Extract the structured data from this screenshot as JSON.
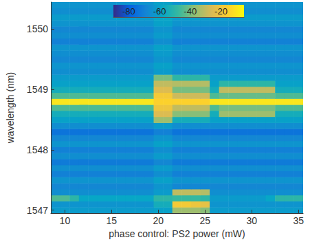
{
  "chart_data": {
    "type": "heatmap",
    "x_label": "phase control: PS2 power (mW)",
    "y_label": "wavelength (nm)",
    "xlim": [
      8.5,
      35.5
    ],
    "ylim": [
      1546.95,
      1550.45
    ],
    "xticks": [
      10,
      15,
      20,
      25,
      30,
      35
    ],
    "yticks": [
      1547,
      1548,
      1549,
      1550
    ],
    "colorbar": {
      "range": [
        -90,
        -5
      ],
      "ticks": [
        -80,
        -60,
        -40,
        -20
      ]
    },
    "x": [
      9,
      10,
      11,
      12,
      13,
      14,
      15,
      16,
      17,
      18,
      19,
      20,
      21,
      22,
      23,
      24,
      25,
      26,
      27,
      28,
      29,
      30,
      31,
      32,
      33,
      34,
      35
    ],
    "y": [
      1547.0,
      1547.1,
      1547.2,
      1547.3,
      1547.4,
      1547.5,
      1547.6,
      1547.7,
      1547.8,
      1547.9,
      1548.0,
      1548.1,
      1548.2,
      1548.3,
      1548.4,
      1548.5,
      1548.6,
      1548.7,
      1548.8,
      1548.9,
      1549.0,
      1549.1,
      1549.2,
      1549.3,
      1549.4,
      1549.5,
      1549.6,
      1549.7,
      1549.8,
      1549.9,
      1550.0,
      1550.1,
      1550.2,
      1550.3,
      1550.4
    ],
    "values": [
      [
        -62,
        -62,
        -62,
        -62,
        -62,
        -62,
        -62,
        -62,
        -62,
        -62,
        -62,
        -60,
        -60,
        -35,
        -35,
        -35,
        -38,
        -62,
        -62,
        -62,
        -62,
        -62,
        -62,
        -62,
        -62,
        -62,
        -62
      ],
      [
        -64,
        -64,
        -64,
        -64,
        -64,
        -64,
        -64,
        -64,
        -64,
        -64,
        -64,
        -55,
        -55,
        -18,
        -18,
        -20,
        -22,
        -64,
        -64,
        -64,
        -64,
        -64,
        -64,
        -64,
        -64,
        -64,
        -64
      ],
      [
        -45,
        -45,
        -50,
        -58,
        -58,
        -58,
        -58,
        -58,
        -58,
        -58,
        -58,
        -50,
        -50,
        -48,
        -48,
        -48,
        -50,
        -62,
        -62,
        -62,
        -62,
        -62,
        -62,
        -58,
        -50,
        -50,
        -50
      ],
      [
        -66,
        -66,
        -66,
        -66,
        -66,
        -66,
        -66,
        -66,
        -66,
        -66,
        -66,
        -62,
        -62,
        -30,
        -30,
        -30,
        -32,
        -66,
        -66,
        -66,
        -66,
        -66,
        -66,
        -66,
        -66,
        -66,
        -66
      ],
      [
        -68,
        -68,
        -68,
        -68,
        -68,
        -68,
        -68,
        -68,
        -68,
        -68,
        -68,
        -64,
        -64,
        -68,
        -68,
        -68,
        -68,
        -68,
        -68,
        -68,
        -68,
        -68,
        -68,
        -68,
        -68,
        -68,
        -68
      ],
      [
        -64,
        -64,
        -64,
        -64,
        -64,
        -64,
        -64,
        -64,
        -64,
        -64,
        -64,
        -60,
        -60,
        -64,
        -64,
        -64,
        -64,
        -64,
        -64,
        -64,
        -64,
        -64,
        -64,
        -64,
        -64,
        -64,
        -64
      ],
      [
        -70,
        -70,
        -70,
        -70,
        -70,
        -70,
        -70,
        -70,
        -70,
        -70,
        -70,
        -66,
        -66,
        -70,
        -70,
        -70,
        -70,
        -70,
        -70,
        -70,
        -70,
        -70,
        -70,
        -70,
        -70,
        -70,
        -70
      ],
      [
        -66,
        -66,
        -66,
        -66,
        -66,
        -66,
        -66,
        -66,
        -66,
        -66,
        -66,
        -62,
        -62,
        -66,
        -66,
        -66,
        -66,
        -66,
        -66,
        -66,
        -66,
        -66,
        -66,
        -66,
        -66,
        -66,
        -66
      ],
      [
        -72,
        -72,
        -72,
        -72,
        -72,
        -72,
        -72,
        -72,
        -72,
        -72,
        -72,
        -68,
        -68,
        -72,
        -72,
        -72,
        -72,
        -72,
        -72,
        -72,
        -72,
        -72,
        -72,
        -72,
        -72,
        -72,
        -72
      ],
      [
        -66,
        -66,
        -66,
        -66,
        -66,
        -66,
        -66,
        -66,
        -66,
        -66,
        -66,
        -62,
        -62,
        -66,
        -66,
        -66,
        -66,
        -66,
        -66,
        -66,
        -66,
        -66,
        -66,
        -66,
        -66,
        -66,
        -66
      ],
      [
        -70,
        -70,
        -70,
        -70,
        -70,
        -70,
        -70,
        -70,
        -70,
        -70,
        -70,
        -66,
        -66,
        -70,
        -70,
        -70,
        -70,
        -70,
        -70,
        -70,
        -70,
        -70,
        -70,
        -70,
        -70,
        -70,
        -70
      ],
      [
        -64,
        -64,
        -64,
        -64,
        -64,
        -64,
        -64,
        -64,
        -64,
        -64,
        -64,
        -60,
        -60,
        -64,
        -64,
        -64,
        -64,
        -64,
        -64,
        -64,
        -64,
        -64,
        -64,
        -64,
        -64,
        -64,
        -64
      ],
      [
        -68,
        -68,
        -68,
        -68,
        -68,
        -68,
        -68,
        -68,
        -68,
        -68,
        -68,
        -64,
        -64,
        -68,
        -68,
        -68,
        -68,
        -68,
        -68,
        -68,
        -68,
        -68,
        -68,
        -68,
        -68,
        -68,
        -68
      ],
      [
        -74,
        -74,
        -74,
        -74,
        -74,
        -74,
        -74,
        -74,
        -74,
        -74,
        -74,
        -70,
        -70,
        -74,
        -74,
        -74,
        -74,
        -74,
        -74,
        -74,
        -74,
        -74,
        -74,
        -74,
        -74,
        -74,
        -74
      ],
      [
        -66,
        -66,
        -66,
        -66,
        -66,
        -66,
        -66,
        -66,
        -66,
        -66,
        -66,
        -62,
        -62,
        -66,
        -66,
        -66,
        -66,
        -66,
        -66,
        -66,
        -66,
        -66,
        -66,
        -66,
        -66,
        -66,
        -66
      ],
      [
        -60,
        -60,
        -60,
        -60,
        -60,
        -60,
        -60,
        -60,
        -60,
        -60,
        -60,
        -35,
        -35,
        -55,
        -55,
        -55,
        -55,
        -60,
        -60,
        -60,
        -60,
        -60,
        -60,
        -60,
        -60,
        -60,
        -60
      ],
      [
        -55,
        -55,
        -55,
        -55,
        -55,
        -55,
        -55,
        -55,
        -55,
        -55,
        -55,
        -25,
        -25,
        -38,
        -38,
        -38,
        -38,
        -55,
        -35,
        -35,
        -35,
        -35,
        -35,
        -35,
        -55,
        -55,
        -55
      ],
      [
        -45,
        -45,
        -45,
        -45,
        -45,
        -45,
        -45,
        -45,
        -45,
        -45,
        -45,
        -20,
        -20,
        -30,
        -30,
        -30,
        -30,
        -45,
        -40,
        -40,
        -40,
        -40,
        -40,
        -40,
        -45,
        -45,
        -45
      ],
      [
        -10,
        -10,
        -10,
        -10,
        -10,
        -10,
        -10,
        -10,
        -10,
        -10,
        -10,
        -15,
        -15,
        -15,
        -15,
        -15,
        -15,
        -10,
        -10,
        -10,
        -10,
        -10,
        -10,
        -10,
        -10,
        -10,
        -10
      ],
      [
        -45,
        -45,
        -45,
        -45,
        -45,
        -45,
        -45,
        -45,
        -45,
        -45,
        -45,
        -18,
        -18,
        -28,
        -28,
        -28,
        -28,
        -45,
        -42,
        -42,
        -42,
        -42,
        -42,
        -42,
        -45,
        -45,
        -45
      ],
      [
        -55,
        -55,
        -55,
        -55,
        -55,
        -55,
        -55,
        -55,
        -55,
        -55,
        -55,
        -25,
        -25,
        -40,
        -40,
        -40,
        -40,
        -55,
        -30,
        -30,
        -30,
        -30,
        -30,
        -30,
        -55,
        -55,
        -55
      ],
      [
        -60,
        -60,
        -60,
        -60,
        -60,
        -60,
        -60,
        -60,
        -60,
        -60,
        -60,
        -30,
        -30,
        -32,
        -32,
        -32,
        -32,
        -60,
        -50,
        -50,
        -50,
        -50,
        -50,
        -50,
        -60,
        -60,
        -60
      ],
      [
        -62,
        -62,
        -62,
        -62,
        -62,
        -62,
        -62,
        -62,
        -62,
        -62,
        -62,
        -40,
        -40,
        -50,
        -50,
        -50,
        -50,
        -62,
        -62,
        -62,
        -62,
        -62,
        -62,
        -62,
        -62,
        -62,
        -62
      ],
      [
        -66,
        -66,
        -66,
        -66,
        -66,
        -66,
        -66,
        -66,
        -66,
        -66,
        -66,
        -62,
        -62,
        -66,
        -66,
        -66,
        -66,
        -66,
        -66,
        -66,
        -66,
        -66,
        -66,
        -66,
        -66,
        -66,
        -66
      ],
      [
        -64,
        -64,
        -64,
        -64,
        -64,
        -64,
        -64,
        -64,
        -64,
        -64,
        -64,
        -60,
        -60,
        -64,
        -64,
        -64,
        -64,
        -64,
        -64,
        -64,
        -64,
        -64,
        -64,
        -64,
        -64,
        -64,
        -64
      ],
      [
        -68,
        -68,
        -68,
        -68,
        -68,
        -68,
        -68,
        -68,
        -68,
        -68,
        -68,
        -64,
        -64,
        -68,
        -68,
        -68,
        -68,
        -68,
        -68,
        -68,
        -68,
        -68,
        -68,
        -68,
        -68,
        -68,
        -68
      ],
      [
        -66,
        -66,
        -66,
        -66,
        -66,
        -66,
        -66,
        -66,
        -66,
        -66,
        -66,
        -62,
        -62,
        -66,
        -66,
        -66,
        -66,
        -66,
        -66,
        -66,
        -66,
        -66,
        -66,
        -66,
        -66,
        -66,
        -66
      ],
      [
        -64,
        -64,
        -64,
        -64,
        -64,
        -64,
        -64,
        -64,
        -64,
        -64,
        -64,
        -60,
        -60,
        -64,
        -64,
        -64,
        -64,
        -64,
        -64,
        -64,
        -64,
        -64,
        -64,
        -64,
        -64,
        -64,
        -64
      ],
      [
        -70,
        -70,
        -70,
        -70,
        -70,
        -70,
        -70,
        -70,
        -70,
        -70,
        -70,
        -66,
        -66,
        -70,
        -70,
        -70,
        -70,
        -70,
        -70,
        -70,
        -70,
        -70,
        -70,
        -70,
        -70,
        -70,
        -70
      ],
      [
        -66,
        -66,
        -66,
        -66,
        -66,
        -66,
        -66,
        -66,
        -66,
        -66,
        -66,
        -62,
        -62,
        -66,
        -66,
        -66,
        -66,
        -66,
        -66,
        -66,
        -66,
        -66,
        -66,
        -66,
        -66,
        -66,
        -66
      ],
      [
        -68,
        -68,
        -68,
        -68,
        -68,
        -68,
        -68,
        -68,
        -68,
        -68,
        -68,
        -64,
        -64,
        -68,
        -68,
        -68,
        -68,
        -68,
        -68,
        -68,
        -68,
        -68,
        -68,
        -68,
        -68,
        -68,
        -68
      ],
      [
        -64,
        -64,
        -64,
        -64,
        -64,
        -64,
        -64,
        -64,
        -64,
        -64,
        -64,
        -60,
        -60,
        -64,
        -64,
        -64,
        -64,
        -64,
        -64,
        -64,
        -64,
        -64,
        -64,
        -64,
        -64,
        -64,
        -64
      ],
      [
        -62,
        -62,
        -62,
        -62,
        -62,
        -62,
        -62,
        -62,
        -62,
        -62,
        -62,
        -58,
        -58,
        -62,
        -62,
        -62,
        -62,
        -62,
        -62,
        -62,
        -62,
        -62,
        -62,
        -62,
        -62,
        -62,
        -62
      ],
      [
        -66,
        -66,
        -66,
        -66,
        -66,
        -66,
        -66,
        -66,
        -66,
        -66,
        -66,
        -62,
        -62,
        -66,
        -66,
        -66,
        -66,
        -66,
        -66,
        -66,
        -66,
        -66,
        -66,
        -66,
        -66,
        -66,
        -66
      ],
      [
        -64,
        -64,
        -64,
        -64,
        -64,
        -64,
        -64,
        -64,
        -64,
        -64,
        -64,
        -60,
        -60,
        -64,
        -64,
        -64,
        -64,
        -64,
        -64,
        -64,
        -64,
        -64,
        -64,
        -64,
        -64,
        -64,
        -64
      ]
    ]
  }
}
